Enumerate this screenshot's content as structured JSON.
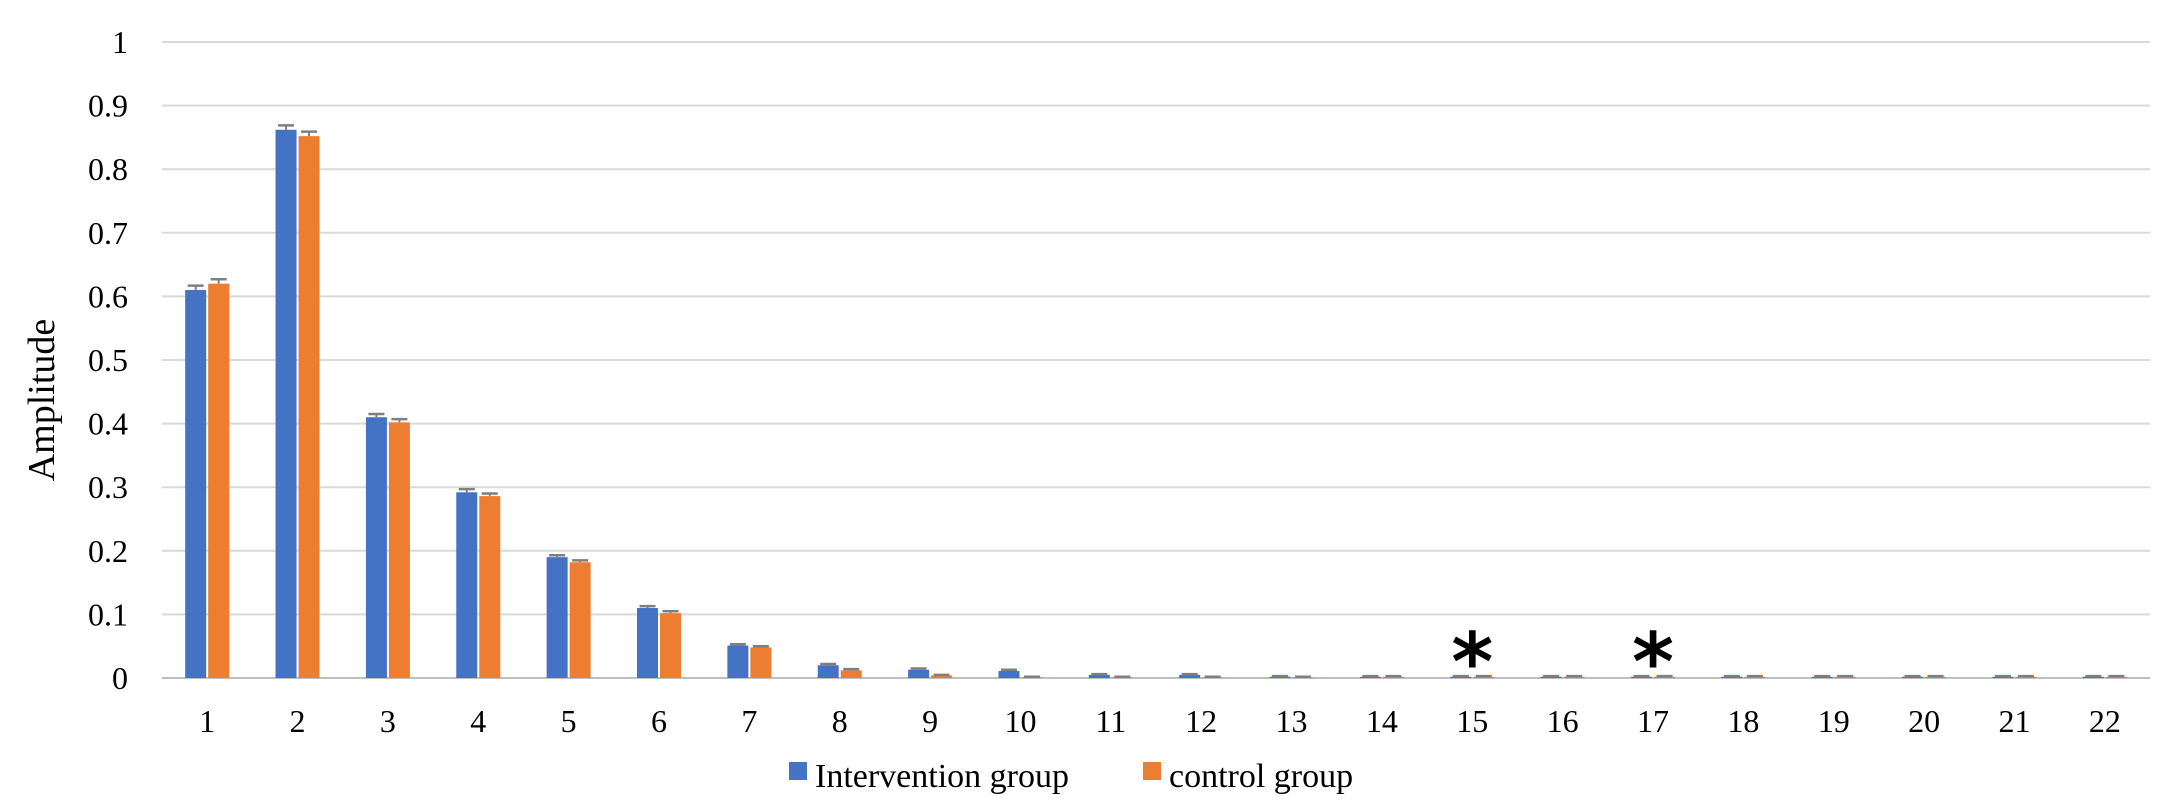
{
  "chart_data": {
    "type": "bar",
    "title": "",
    "xlabel": "",
    "ylabel": "Amplitude",
    "ylim": [
      0,
      1
    ],
    "yticks": [
      "0",
      "0.1",
      "0.2",
      "0.3",
      "0.4",
      "0.5",
      "0.6",
      "0.7",
      "0.8",
      "0.9",
      "1"
    ],
    "grid": true,
    "legend_position": "bottom",
    "categories": [
      "1",
      "2",
      "3",
      "4",
      "5",
      "6",
      "7",
      "8",
      "9",
      "10",
      "11",
      "12",
      "13",
      "14",
      "15",
      "16",
      "17",
      "18",
      "19",
      "20",
      "21",
      "22"
    ],
    "series": [
      {
        "name": "Intervention group",
        "color": "#4472C4",
        "values": [
          0.61,
          0.862,
          0.41,
          0.292,
          0.19,
          0.11,
          0.051,
          0.02,
          0.013,
          0.011,
          0.005,
          0.005,
          0.002,
          0.002,
          0.002,
          0.002,
          0.002,
          0.002,
          0.002,
          0.002,
          0.002,
          0.002
        ],
        "errors": [
          0.007,
          0.007,
          0.005,
          0.005,
          0.003,
          0.003,
          0.002,
          0.002,
          0.002,
          0.002,
          0.001,
          0.001,
          0.001,
          0.001,
          0.001,
          0.001,
          0.001,
          0.001,
          0.001,
          0.001,
          0.001,
          0.001
        ]
      },
      {
        "name": "control group",
        "color": "#ED7D31",
        "values": [
          0.62,
          0.852,
          0.402,
          0.286,
          0.182,
          0.102,
          0.048,
          0.012,
          0.004,
          0.001,
          0.001,
          0.001,
          0.001,
          0.002,
          0.002,
          0.002,
          0.002,
          0.002,
          0.002,
          0.002,
          0.002,
          0.002
        ],
        "errors": [
          0.007,
          0.007,
          0.005,
          0.004,
          0.003,
          0.003,
          0.002,
          0.002,
          0.001,
          0.001,
          0.001,
          0.001,
          0.001,
          0.001,
          0.001,
          0.001,
          0.001,
          0.001,
          0.001,
          0.001,
          0.001,
          0.001
        ]
      }
    ],
    "annotations": [
      {
        "category": "15",
        "text": "*"
      },
      {
        "category": "17",
        "text": "*"
      }
    ],
    "colors": {
      "grid": "#D9D9D9",
      "error_bar": "#7F7F7F",
      "axis": "#BFBFBF"
    }
  }
}
